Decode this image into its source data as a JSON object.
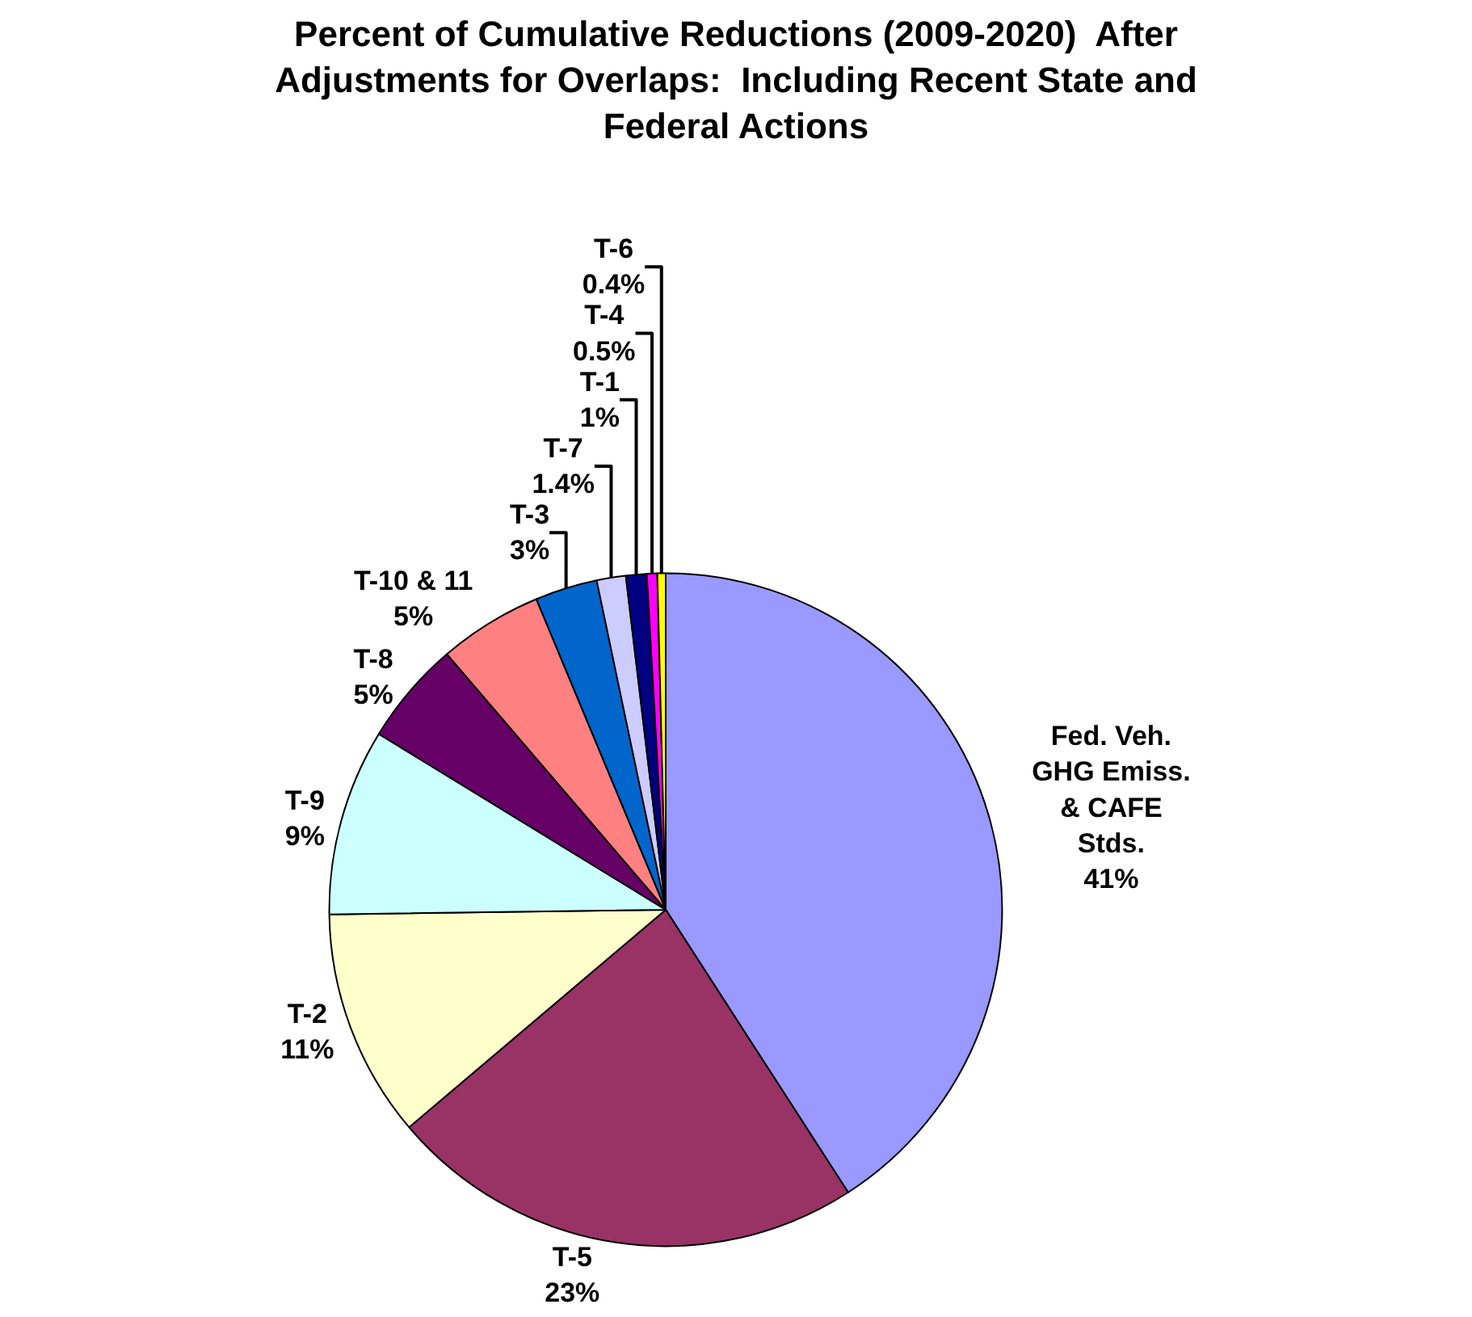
{
  "chart_data": {
    "type": "pie",
    "title": "Percent of Cumulative Reductions (2009-2020)  After Adjustments for Overlaps:  Including Recent State and Federal Actions",
    "categories": [
      "Fed. Veh. GHG Emiss. & CAFE Stds.",
      "T-5",
      "T-2",
      "T-9",
      "T-8",
      "T-10 & 11",
      "T-3",
      "T-7",
      "T-1",
      "T-4",
      "T-6"
    ],
    "values": [
      41,
      23,
      11,
      9,
      5,
      5,
      3,
      1.4,
      1,
      0.5,
      0.4
    ],
    "value_labels": [
      "41%",
      "23%",
      "11%",
      "9%",
      "5%",
      "5%",
      "3%",
      "1.4%",
      "1%",
      "0.5%",
      "0.4%"
    ],
    "colors": [
      "#9999ff",
      "#993366",
      "#ffffcc",
      "#ccffff",
      "#660066",
      "#ff8080",
      "#0066cc",
      "#ccccff",
      "#000080",
      "#ff00ff",
      "#ffff00"
    ]
  }
}
